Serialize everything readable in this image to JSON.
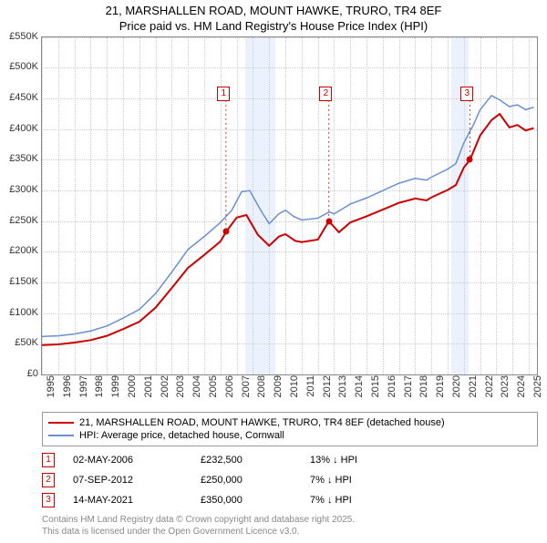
{
  "title_line1": "21, MARSHALLEN ROAD, MOUNT HAWKE, TRURO, TR4 8EF",
  "title_line2": "Price paid vs. HM Land Registry's House Price Index (HPI)",
  "chart": {
    "type": "line",
    "xlim": [
      1995,
      2025.5
    ],
    "ylim": [
      0,
      550000
    ],
    "ytick_step": 50000,
    "yticks": [
      "£0",
      "£50K",
      "£100K",
      "£150K",
      "£200K",
      "£250K",
      "£300K",
      "£350K",
      "£400K",
      "£450K",
      "£500K",
      "£550K"
    ],
    "xticks": [
      1995,
      1996,
      1997,
      1998,
      1999,
      2000,
      2001,
      2002,
      2003,
      2004,
      2005,
      2006,
      2007,
      2008,
      2009,
      2010,
      2011,
      2012,
      2013,
      2014,
      2015,
      2016,
      2017,
      2018,
      2019,
      2020,
      2021,
      2022,
      2023,
      2024,
      2025
    ],
    "grid_color": "#cccccc",
    "background_color": "#ffffff",
    "shade_bands": [
      {
        "from": 2007.5,
        "to": 2009.4
      },
      {
        "from": 2020.2,
        "to": 2021.3
      }
    ],
    "series": [
      {
        "name": "hpi",
        "color": "#6a8fd4",
        "width": 1.5,
        "points": [
          [
            1995,
            62000
          ],
          [
            1996,
            63000
          ],
          [
            1997,
            66000
          ],
          [
            1998,
            71000
          ],
          [
            1999,
            79000
          ],
          [
            2000,
            92000
          ],
          [
            2001,
            106000
          ],
          [
            2002,
            132000
          ],
          [
            2003,
            167000
          ],
          [
            2004,
            204000
          ],
          [
            2005,
            225000
          ],
          [
            2006,
            248000
          ],
          [
            2006.7,
            268000
          ],
          [
            2007.3,
            298000
          ],
          [
            2007.8,
            300000
          ],
          [
            2008.5,
            267000
          ],
          [
            2009,
            246000
          ],
          [
            2009.6,
            262000
          ],
          [
            2010,
            268000
          ],
          [
            2010.5,
            258000
          ],
          [
            2011,
            252000
          ],
          [
            2012,
            255000
          ],
          [
            2012.7,
            265000
          ],
          [
            2013,
            262000
          ],
          [
            2014,
            278000
          ],
          [
            2015,
            288000
          ],
          [
            2016,
            300000
          ],
          [
            2017,
            312000
          ],
          [
            2018,
            320000
          ],
          [
            2018.7,
            317000
          ],
          [
            2019,
            322000
          ],
          [
            2020,
            335000
          ],
          [
            2020.5,
            344000
          ],
          [
            2021,
            378000
          ],
          [
            2021.6,
            408000
          ],
          [
            2022,
            432000
          ],
          [
            2022.7,
            455000
          ],
          [
            2023.2,
            448000
          ],
          [
            2023.8,
            437000
          ],
          [
            2024.3,
            440000
          ],
          [
            2024.8,
            432000
          ],
          [
            2025.3,
            436000
          ]
        ]
      },
      {
        "name": "property",
        "color": "#cc0000",
        "width": 2,
        "points": [
          [
            1995,
            48000
          ],
          [
            1996,
            49000
          ],
          [
            1997,
            52000
          ],
          [
            1998,
            56000
          ],
          [
            1999,
            63000
          ],
          [
            2000,
            74000
          ],
          [
            2001,
            86000
          ],
          [
            2002,
            109000
          ],
          [
            2003,
            141000
          ],
          [
            2004,
            174000
          ],
          [
            2005,
            195000
          ],
          [
            2006,
            217000
          ],
          [
            2006.34,
            232500
          ],
          [
            2007,
            256000
          ],
          [
            2007.6,
            260000
          ],
          [
            2008.3,
            228000
          ],
          [
            2009,
            210000
          ],
          [
            2009.6,
            225000
          ],
          [
            2010,
            229000
          ],
          [
            2010.6,
            218000
          ],
          [
            2011,
            216000
          ],
          [
            2012,
            220000
          ],
          [
            2012.68,
            250000
          ],
          [
            2013.3,
            232000
          ],
          [
            2014,
            248000
          ],
          [
            2015,
            258000
          ],
          [
            2016,
            269000
          ],
          [
            2017,
            280000
          ],
          [
            2018,
            287000
          ],
          [
            2018.7,
            284000
          ],
          [
            2019,
            289000
          ],
          [
            2020,
            301000
          ],
          [
            2020.5,
            309000
          ],
          [
            2021,
            338000
          ],
          [
            2021.37,
            350000
          ],
          [
            2022,
            390000
          ],
          [
            2022.7,
            415000
          ],
          [
            2023.2,
            425000
          ],
          [
            2023.8,
            403000
          ],
          [
            2024.3,
            407000
          ],
          [
            2024.8,
            398000
          ],
          [
            2025.3,
            402000
          ]
        ]
      }
    ],
    "sale_markers": [
      {
        "n": "1",
        "x": 2006.34,
        "y": 232500,
        "label_x": 2005.8,
        "label_y": 470000
      },
      {
        "n": "2",
        "x": 2012.68,
        "y": 250000,
        "label_x": 2012.1,
        "label_y": 470000
      },
      {
        "n": "3",
        "x": 2021.37,
        "y": 350000,
        "label_x": 2020.8,
        "label_y": 470000
      }
    ]
  },
  "legend": {
    "items": [
      {
        "color": "#cc0000",
        "label": "21, MARSHALLEN ROAD, MOUNT HAWKE, TRURO, TR4 8EF (detached house)"
      },
      {
        "color": "#6a8fd4",
        "label": "HPI: Average price, detached house, Cornwall"
      }
    ]
  },
  "sales": [
    {
      "n": "1",
      "date": "02-MAY-2006",
      "price": "£232,500",
      "diff": "13% ↓ HPI"
    },
    {
      "n": "2",
      "date": "07-SEP-2012",
      "price": "£250,000",
      "diff": "7% ↓ HPI"
    },
    {
      "n": "3",
      "date": "14-MAY-2021",
      "price": "£350,000",
      "diff": "7% ↓ HPI"
    }
  ],
  "attribution_line1": "Contains HM Land Registry data © Crown copyright and database right 2025.",
  "attribution_line2": "This data is licensed under the Open Government Licence v3.0."
}
